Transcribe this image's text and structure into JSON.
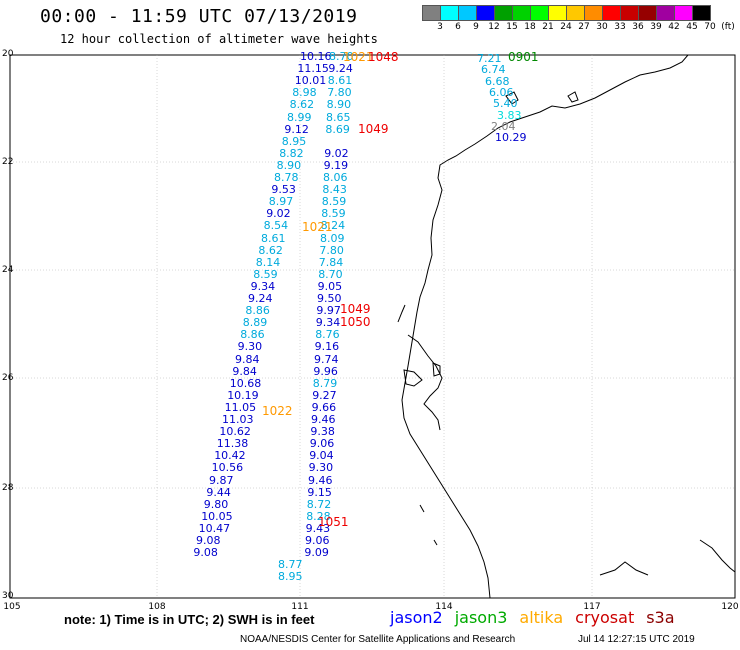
{
  "header": {
    "title": "00:00 - 11:59 UTC 07/13/2019",
    "subtitle": "12 hour collection of altimeter wave heights"
  },
  "scale": {
    "labels": [
      "3",
      "6",
      "9",
      "12",
      "15",
      "18",
      "21",
      "24",
      "27",
      "30",
      "33",
      "36",
      "39",
      "42",
      "45",
      "70",
      "(ft)"
    ],
    "colors": [
      "#808080",
      "#00ffff",
      "#00c8ff",
      "#0000ff",
      "#00a000",
      "#00d200",
      "#00ff00",
      "#ffff00",
      "#ffc800",
      "#ff8c00",
      "#ff0000",
      "#c80000",
      "#960000",
      "#a000a0",
      "#ff00ff",
      "#000000"
    ]
  },
  "map": {
    "lat_labels": [
      "20",
      "22",
      "24",
      "26",
      "28",
      "30"
    ],
    "lon_labels": [
      "105",
      "108",
      "111",
      "114",
      "117",
      "120"
    ]
  },
  "measurements": [
    {
      "v": "10.16",
      "c": "#0000cd",
      "r": 0
    },
    {
      "v": "8.70",
      "c": "#00aadc",
      "r": 0
    },
    {
      "v": "11.15",
      "c": "#0000cd",
      "r": 1
    },
    {
      "v": "9.24",
      "c": "#0000cd",
      "r": 1
    },
    {
      "v": "10.01",
      "c": "#0000cd",
      "r": 2
    },
    {
      "v": "8.61",
      "c": "#00aadc",
      "r": 2
    },
    {
      "v": "8.98",
      "c": "#00aadc",
      "r": 3
    },
    {
      "v": "7.80",
      "c": "#00aadc",
      "r": 3
    },
    {
      "v": "8.62",
      "c": "#00aadc",
      "r": 4
    },
    {
      "v": "8.90",
      "c": "#00aadc",
      "r": 4
    },
    {
      "v": "8.99",
      "c": "#00aadc",
      "r": 5
    },
    {
      "v": "8.65",
      "c": "#00aadc",
      "r": 5
    },
    {
      "v": "9.12",
      "c": "#0000cd",
      "r": 6
    },
    {
      "v": "8.69",
      "c": "#00aadc",
      "r": 6
    },
    {
      "v": "8.95",
      "c": "#00aadc",
      "r": 7
    },
    {
      "v": "8.82",
      "c": "#00aadc",
      "r": 8
    },
    {
      "v": "9.02",
      "c": "#0000cd",
      "r": 8
    },
    {
      "v": "8.90",
      "c": "#00aadc",
      "r": 9
    },
    {
      "v": "9.19",
      "c": "#0000cd",
      "r": 9
    },
    {
      "v": "8.78",
      "c": "#00aadc",
      "r": 10
    },
    {
      "v": "8.06",
      "c": "#00aadc",
      "r": 10
    },
    {
      "v": "9.53",
      "c": "#0000cd",
      "r": 11
    },
    {
      "v": "8.43",
      "c": "#00aadc",
      "r": 11
    },
    {
      "v": "8.97",
      "c": "#00aadc",
      "r": 12
    },
    {
      "v": "8.59",
      "c": "#00aadc",
      "r": 12
    },
    {
      "v": "9.02",
      "c": "#0000cd",
      "r": 13
    },
    {
      "v": "8.59",
      "c": "#00aadc",
      "r": 13
    },
    {
      "v": "8.54",
      "c": "#00aadc",
      "r": 14
    },
    {
      "v": "8.24",
      "c": "#00aadc",
      "r": 14
    },
    {
      "v": "8.61",
      "c": "#00aadc",
      "r": 15
    },
    {
      "v": "8.09",
      "c": "#00aadc",
      "r": 15
    },
    {
      "v": "8.62",
      "c": "#00aadc",
      "r": 16
    },
    {
      "v": "7.80",
      "c": "#00aadc",
      "r": 16
    },
    {
      "v": "8.14",
      "c": "#00aadc",
      "r": 17
    },
    {
      "v": "7.84",
      "c": "#00aadc",
      "r": 17
    },
    {
      "v": "8.59",
      "c": "#00aadc",
      "r": 18
    },
    {
      "v": "8.70",
      "c": "#00aadc",
      "r": 18
    },
    {
      "v": "9.34",
      "c": "#0000cd",
      "r": 19
    },
    {
      "v": "9.05",
      "c": "#0000cd",
      "r": 19
    },
    {
      "v": "9.24",
      "c": "#0000cd",
      "r": 20
    },
    {
      "v": "9.50",
      "c": "#0000cd",
      "r": 20
    },
    {
      "v": "8.86",
      "c": "#00aadc",
      "r": 21
    },
    {
      "v": "9.97",
      "c": "#0000cd",
      "r": 21
    },
    {
      "v": "8.89",
      "c": "#00aadc",
      "r": 22
    },
    {
      "v": "9.34",
      "c": "#0000cd",
      "r": 22
    },
    {
      "v": "8.86",
      "c": "#00aadc",
      "r": 23
    },
    {
      "v": "8.76",
      "c": "#00aadc",
      "r": 23
    },
    {
      "v": "9.30",
      "c": "#0000cd",
      "r": 24
    },
    {
      "v": "9.16",
      "c": "#0000cd",
      "r": 24
    },
    {
      "v": "9.84",
      "c": "#0000cd",
      "r": 25
    },
    {
      "v": "9.74",
      "c": "#0000cd",
      "r": 25
    },
    {
      "v": "9.84",
      "c": "#0000cd",
      "r": 26
    },
    {
      "v": "9.96",
      "c": "#0000cd",
      "r": 26
    },
    {
      "v": "10.68",
      "c": "#0000cd",
      "r": 27
    },
    {
      "v": "8.79",
      "c": "#00aadc",
      "r": 27
    },
    {
      "v": "10.19",
      "c": "#0000cd",
      "r": 28
    },
    {
      "v": "9.27",
      "c": "#0000cd",
      "r": 28
    },
    {
      "v": "11.05",
      "c": "#0000cd",
      "r": 29
    },
    {
      "v": "9.66",
      "c": "#0000cd",
      "r": 29
    },
    {
      "v": "11.03",
      "c": "#0000cd",
      "r": 30
    },
    {
      "v": "9.46",
      "c": "#0000cd",
      "r": 30
    },
    {
      "v": "10.62",
      "c": "#0000cd",
      "r": 31
    },
    {
      "v": "9.38",
      "c": "#0000cd",
      "r": 31
    },
    {
      "v": "11.38",
      "c": "#0000cd",
      "r": 32
    },
    {
      "v": "9.06",
      "c": "#0000cd",
      "r": 32
    },
    {
      "v": "10.42",
      "c": "#0000cd",
      "r": 33
    },
    {
      "v": "9.04",
      "c": "#0000cd",
      "r": 33
    },
    {
      "v": "10.56",
      "c": "#0000cd",
      "r": 34
    },
    {
      "v": "9.30",
      "c": "#0000cd",
      "r": 34
    },
    {
      "v": "9.87",
      "c": "#0000cd",
      "r": 35
    },
    {
      "v": "9.46",
      "c": "#0000cd",
      "r": 35
    },
    {
      "v": "9.44",
      "c": "#0000cd",
      "r": 36
    },
    {
      "v": "9.15",
      "c": "#0000cd",
      "r": 36
    },
    {
      "v": "9.80",
      "c": "#0000cd",
      "r": 37
    },
    {
      "v": "8.72",
      "c": "#00aadc",
      "r": 37
    },
    {
      "v": "10.05",
      "c": "#0000cd",
      "r": 38
    },
    {
      "v": "8.28",
      "c": "#00aadc",
      "r": 38
    },
    {
      "v": "10.47",
      "c": "#0000cd",
      "r": 39
    },
    {
      "v": "9.43",
      "c": "#0000cd",
      "r": 39
    },
    {
      "v": "9.08",
      "c": "#0000cd",
      "r": 40
    },
    {
      "v": "9.06",
      "c": "#0000cd",
      "r": 40
    },
    {
      "v": "9.08",
      "c": "#0000cd",
      "r": 41
    },
    {
      "v": "9.09",
      "c": "#0000cd",
      "r": 41
    },
    {
      "v": "8.77",
      "c": "#00aadc",
      "r": 42
    },
    {
      "v": "8.95",
      "c": "#00aadc",
      "r": 43
    },
    {
      "v": "7.21",
      "c": "#00aadc",
      "r": 44
    },
    {
      "v": "6.74",
      "c": "#00aadc",
      "r": 45
    },
    {
      "v": "6.68",
      "c": "#00aadc",
      "r": 46
    },
    {
      "v": "6.06",
      "c": "#00aadc",
      "r": 47
    },
    {
      "v": "5.40",
      "c": "#00aadc",
      "r": 48
    },
    {
      "v": "3.83",
      "c": "#00dcdc",
      "r": 49
    },
    {
      "v": "2.04",
      "c": "#808080",
      "r": 50
    },
    {
      "v": "10.29",
      "c": "#0000cd",
      "r": 51
    }
  ],
  "revolutions": [
    {
      "id": "1021",
      "c": "#ff9900"
    },
    {
      "id": "1048",
      "c": "#ee0000"
    },
    {
      "id": "0901",
      "c": "#008800"
    },
    {
      "id": "1049",
      "c": "#ee0000"
    },
    {
      "id": "1021",
      "c": "#ff9900"
    },
    {
      "id": "1049",
      "c": "#ee0000"
    },
    {
      "id": "1050",
      "c": "#ee0000"
    },
    {
      "id": "1022",
      "c": "#ff9900"
    },
    {
      "id": "1051",
      "c": "#ee0000"
    }
  ],
  "footer": {
    "note": "note: 1) Time is in UTC; 2) SWH is in feet",
    "legend": [
      {
        "label": "jason2",
        "color": "#0000ff"
      },
      {
        "label": "jason3",
        "color": "#00aa00"
      },
      {
        "label": "altika",
        "color": "#ffaa00"
      },
      {
        "label": "cryosat",
        "color": "#cc0000"
      },
      {
        "label": "s3a",
        "color": "#8b0000"
      }
    ],
    "credit": "NOAA/NESDIS Center for Satellite Applications and Research",
    "timestamp": "Jul 14 12:27:15 UTC 2019"
  }
}
